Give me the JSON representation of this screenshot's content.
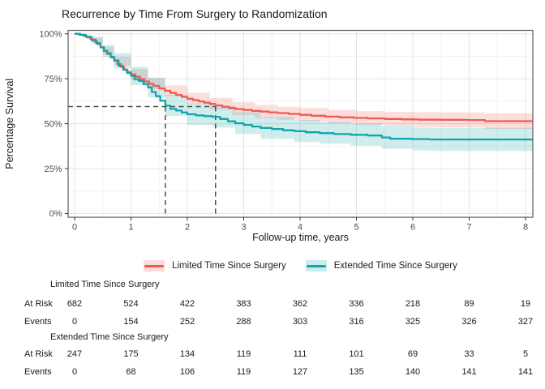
{
  "title": "Recurrence by Time From Surgery to Randomization",
  "chart_data": {
    "type": "line",
    "subtype": "kaplan-meier-step",
    "title": "Recurrence by Time From Surgery to Randomization",
    "xlabel": "Follow-up time, years",
    "ylabel": "Percentage Survival",
    "xlim": [
      -0.115,
      8.13
    ],
    "ylim": [
      0,
      100
    ],
    "x_ticks": [
      0,
      1,
      2,
      3,
      4,
      5,
      6,
      7,
      8
    ],
    "y_ticks": [
      {
        "value": 0,
        "label": "0%"
      },
      {
        "value": 25,
        "label": "25%"
      },
      {
        "value": 50,
        "label": "50%"
      },
      {
        "value": 75,
        "label": "75%"
      },
      {
        "value": 100,
        "label": "100%"
      }
    ],
    "grid": "major and minor gridlines on",
    "legend_position": "bottom",
    "reference_lines": {
      "style": "dashed",
      "survival_percent": 60,
      "times_years": [
        1.61,
        2.5
      ]
    },
    "series": [
      {
        "name": "Limited Time Since Surgery",
        "color": "#EF5B51",
        "band_alpha": 0.2,
        "line": [
          [
            0,
            100
          ],
          [
            0.08,
            99.5
          ],
          [
            0.16,
            98.8
          ],
          [
            0.22,
            98
          ],
          [
            0.28,
            97
          ],
          [
            0.34,
            95.8
          ],
          [
            0.4,
            94.3
          ],
          [
            0.46,
            92.6
          ],
          [
            0.52,
            90.6
          ],
          [
            0.58,
            88.8
          ],
          [
            0.64,
            86.9
          ],
          [
            0.7,
            85
          ],
          [
            0.76,
            83.2
          ],
          [
            0.82,
            81.6
          ],
          [
            0.88,
            80.1
          ],
          [
            0.94,
            78.7
          ],
          [
            1.0,
            77.4
          ],
          [
            1.08,
            76.1
          ],
          [
            1.16,
            74.8
          ],
          [
            1.24,
            73.5
          ],
          [
            1.32,
            72.2
          ],
          [
            1.4,
            71
          ],
          [
            1.5,
            69.6
          ],
          [
            1.6,
            68.3
          ],
          [
            1.7,
            67.1
          ],
          [
            1.8,
            66
          ],
          [
            1.9,
            64.9
          ],
          [
            2.0,
            63.9
          ],
          [
            2.1,
            63.1
          ],
          [
            2.2,
            62.4
          ],
          [
            2.3,
            61.7
          ],
          [
            2.4,
            61
          ],
          [
            2.5,
            60.2
          ],
          [
            2.62,
            59.4
          ],
          [
            2.74,
            58.7
          ],
          [
            2.86,
            58.1
          ],
          [
            3.0,
            57.6
          ],
          [
            3.15,
            57.1
          ],
          [
            3.3,
            56.7
          ],
          [
            3.45,
            56.3
          ],
          [
            3.6,
            55.9
          ],
          [
            3.8,
            55.4
          ],
          [
            4.0,
            54.9
          ],
          [
            4.2,
            54.4
          ],
          [
            4.45,
            53.9
          ],
          [
            4.7,
            53.5
          ],
          [
            4.95,
            53.2
          ],
          [
            5.2,
            52.9
          ],
          [
            5.5,
            52.6
          ],
          [
            5.8,
            52.4
          ],
          [
            6.1,
            52.2
          ],
          [
            6.5,
            52.1
          ],
          [
            7.0,
            52.0
          ],
          [
            7.28,
            51.4
          ],
          [
            8.17,
            51.3
          ]
        ],
        "upper": [
          [
            0,
            100
          ],
          [
            0.3,
            97.8
          ],
          [
            0.5,
            92.8
          ],
          [
            0.7,
            87.2
          ],
          [
            1.0,
            80.4
          ],
          [
            1.3,
            75.2
          ],
          [
            1.6,
            71.3
          ],
          [
            2.0,
            67.2
          ],
          [
            2.4,
            64.4
          ],
          [
            2.8,
            61.9
          ],
          [
            3.2,
            60.4
          ],
          [
            3.6,
            59.4
          ],
          [
            4.0,
            58.6
          ],
          [
            4.5,
            57.7
          ],
          [
            5.0,
            57
          ],
          [
            5.5,
            56.6
          ],
          [
            6.0,
            56.4
          ],
          [
            6.5,
            56.3
          ],
          [
            7.0,
            56.2
          ],
          [
            7.28,
            55.7
          ],
          [
            8.17,
            55.6
          ]
        ],
        "lower": [
          [
            0,
            100
          ],
          [
            0.3,
            95.4
          ],
          [
            0.5,
            88.4
          ],
          [
            0.7,
            82.4
          ],
          [
            1.0,
            74.4
          ],
          [
            1.3,
            69.2
          ],
          [
            1.6,
            65.2
          ],
          [
            2.0,
            60.7
          ],
          [
            2.4,
            57.7
          ],
          [
            2.8,
            54.9
          ],
          [
            3.2,
            53.2
          ],
          [
            3.6,
            52.2
          ],
          [
            4.0,
            51.2
          ],
          [
            4.5,
            50.2
          ],
          [
            5.0,
            49.4
          ],
          [
            5.5,
            48.8
          ],
          [
            6.0,
            48.2
          ],
          [
            6.5,
            48
          ],
          [
            7.0,
            47.9
          ],
          [
            7.28,
            47.1
          ],
          [
            8.17,
            47
          ]
        ]
      },
      {
        "name": "Extended Time Since Surgery",
        "color": "#12A5A9",
        "band_alpha": 0.2,
        "line": [
          [
            0,
            100
          ],
          [
            0.1,
            99.4
          ],
          [
            0.2,
            98.4
          ],
          [
            0.3,
            96.6
          ],
          [
            0.38,
            94.8
          ],
          [
            0.46,
            92.4
          ],
          [
            0.52,
            90.4
          ],
          [
            0.58,
            89.2
          ],
          [
            0.64,
            87.3
          ],
          [
            0.7,
            85.2
          ],
          [
            0.78,
            82.2
          ],
          [
            0.86,
            80
          ],
          [
            0.93,
            78.2
          ],
          [
            1.0,
            76.6
          ],
          [
            1.06,
            74.6
          ],
          [
            1.14,
            73.8
          ],
          [
            1.22,
            72
          ],
          [
            1.3,
            70.2
          ],
          [
            1.37,
            67.6
          ],
          [
            1.44,
            65.3
          ],
          [
            1.52,
            62.8
          ],
          [
            1.61,
            60
          ],
          [
            1.7,
            58.2
          ],
          [
            1.8,
            57.3
          ],
          [
            1.9,
            56.2
          ],
          [
            2.0,
            55.2
          ],
          [
            2.15,
            54.6
          ],
          [
            2.3,
            54.2
          ],
          [
            2.45,
            53.8
          ],
          [
            2.58,
            52.6
          ],
          [
            2.72,
            51.3
          ],
          [
            2.85,
            50.2
          ],
          [
            3.0,
            49.3
          ],
          [
            3.15,
            48.4
          ],
          [
            3.3,
            47.6
          ],
          [
            3.5,
            47
          ],
          [
            3.7,
            46.3
          ],
          [
            3.9,
            45.8
          ],
          [
            4.1,
            45.2
          ],
          [
            4.35,
            44.7
          ],
          [
            4.6,
            44.2
          ],
          [
            4.9,
            43.8
          ],
          [
            5.2,
            43.4
          ],
          [
            5.45,
            42.3
          ],
          [
            5.6,
            41.6
          ],
          [
            6.0,
            41.4
          ],
          [
            6.3,
            41.2
          ],
          [
            8.17,
            41.2
          ]
        ],
        "upper": [
          [
            0,
            100
          ],
          [
            0.3,
            98.3
          ],
          [
            0.5,
            93.8
          ],
          [
            0.7,
            89.3
          ],
          [
            1.0,
            81.6
          ],
          [
            1.3,
            75.6
          ],
          [
            1.61,
            66
          ],
          [
            2.0,
            61.3
          ],
          [
            2.45,
            60
          ],
          [
            2.85,
            56.4
          ],
          [
            3.3,
            53.8
          ],
          [
            3.9,
            52
          ],
          [
            4.35,
            51
          ],
          [
            4.9,
            50.1
          ],
          [
            5.45,
            48.8
          ],
          [
            6.0,
            47.9
          ],
          [
            6.3,
            47.7
          ],
          [
            8.17,
            47.6
          ]
        ],
        "lower": [
          [
            0,
            100
          ],
          [
            0.3,
            94.6
          ],
          [
            0.5,
            86.8
          ],
          [
            0.7,
            80.8
          ],
          [
            1.0,
            71.4
          ],
          [
            1.3,
            64.6
          ],
          [
            1.61,
            54.2
          ],
          [
            2.0,
            49.2
          ],
          [
            2.45,
            47.8
          ],
          [
            2.85,
            44.2
          ],
          [
            3.3,
            41.6
          ],
          [
            3.9,
            39.8
          ],
          [
            4.35,
            38.8
          ],
          [
            4.9,
            37.7
          ],
          [
            5.45,
            36
          ],
          [
            6.0,
            35
          ],
          [
            6.3,
            34.8
          ],
          [
            8.17,
            34.8
          ]
        ]
      }
    ]
  },
  "risk_table": {
    "time_points": [
      0,
      1,
      2,
      3,
      4,
      5,
      6,
      7,
      8
    ],
    "groups": [
      {
        "name": "Limited Time Since Surgery",
        "rows": [
          {
            "label": "At Risk",
            "values": [
              682,
              524,
              422,
              383,
              362,
              336,
              218,
              89,
              19
            ]
          },
          {
            "label": "Events",
            "values": [
              0,
              154,
              252,
              288,
              303,
              316,
              325,
              326,
              327
            ]
          }
        ]
      },
      {
        "name": "Extended Time Since Surgery",
        "rows": [
          {
            "label": "At Risk",
            "values": [
              247,
              175,
              134,
              119,
              111,
              101,
              69,
              33,
              5
            ]
          },
          {
            "label": "Events",
            "values": [
              0,
              68,
              106,
              119,
              127,
              135,
              140,
              141,
              141
            ]
          }
        ]
      }
    ]
  },
  "colors": {
    "limited_line": "#EF5B51",
    "extended_line": "#12A5A9",
    "reference_dash": "#4d4d4d",
    "grid_major": "#e3e3e3",
    "grid_minor": "#f2f2f2",
    "panel_border": "#6b6b6b",
    "tick_text": "#4d4d4d",
    "text": "#1a1a1a"
  }
}
